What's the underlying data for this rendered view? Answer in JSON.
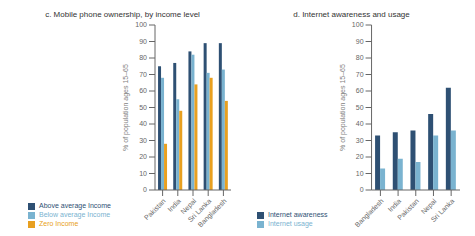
{
  "chart_data": [
    {
      "type": "bar",
      "title": "c. Mobile phone ownership, by income level",
      "categories": [
        "Pakistan",
        "India",
        "Nepal",
        "Sri Lanka",
        "Bangladesh"
      ],
      "series": [
        {
          "name": "Above average Income",
          "color": "#2e5073",
          "values": [
            75,
            77,
            84,
            89,
            89
          ]
        },
        {
          "name": "Below average Income",
          "color": "#7ab3d0",
          "values": [
            68,
            55,
            82,
            71,
            73
          ]
        },
        {
          "name": "Zero Income",
          "color": "#e8a020",
          "values": [
            28,
            48,
            64,
            68,
            54
          ]
        }
      ],
      "ylabel": "% of population ages 15–65",
      "ylim": [
        0,
        100
      ],
      "yticks": [
        0,
        10,
        20,
        30,
        40,
        50,
        60,
        70,
        80,
        90,
        100
      ],
      "grid": false,
      "legend": "bottom"
    },
    {
      "type": "bar",
      "title": "d. Internet awareness and usage",
      "categories": [
        "Bangladesh",
        "India",
        "Pakistan",
        "Nepal",
        "Sri Lanka"
      ],
      "series": [
        {
          "name": "Internet awareness",
          "color": "#2e5073",
          "values": [
            33,
            35,
            36,
            46,
            62
          ]
        },
        {
          "name": "Internet usage",
          "color": "#7ab3d0",
          "values": [
            13,
            19,
            17,
            33,
            36
          ]
        }
      ],
      "ylabel": "% of population ages 15–65",
      "ylim": [
        0,
        100
      ],
      "yticks": [
        0,
        10,
        20,
        30,
        40,
        50,
        60,
        70,
        80,
        90,
        100
      ],
      "grid": false,
      "legend": "bottom"
    }
  ]
}
